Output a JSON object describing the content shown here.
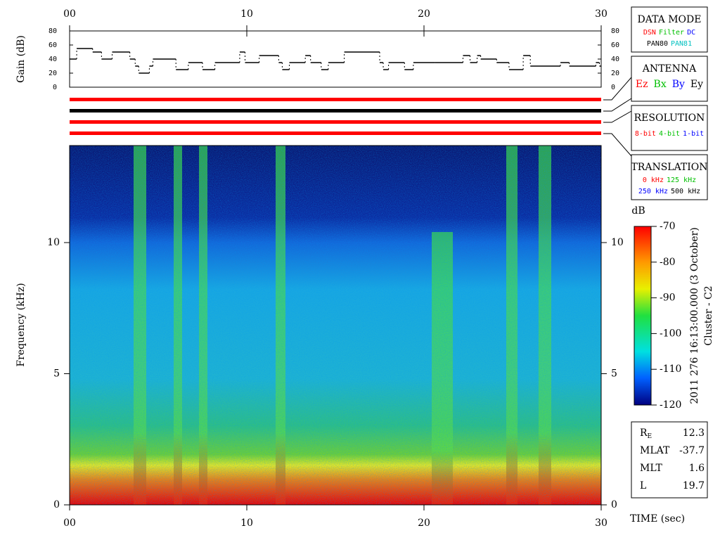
{
  "chart_data": [
    {
      "type": "gain",
      "ylabel": "Gain (dB)",
      "x": [
        0,
        0.4,
        1.3,
        1.8,
        2.4,
        3.4,
        3.7,
        3.9,
        4.5,
        4.7,
        6.0,
        6.7,
        7.5,
        8.2,
        9.6,
        9.9,
        10.7,
        11.8,
        12.0,
        12.4,
        13.3,
        13.6,
        14.2,
        14.6,
        15.5,
        17.5,
        17.7,
        18.0,
        18.9,
        19.4,
        20.6,
        22.2,
        22.6,
        23.0,
        23.2,
        24.1,
        24.8,
        25.6,
        26.0,
        27.7,
        28.2,
        29.7,
        29.9
      ],
      "values": [
        40,
        55,
        50,
        40,
        50,
        40,
        30,
        20,
        30,
        40,
        25,
        35,
        25,
        35,
        50,
        35,
        45,
        35,
        25,
        35,
        45,
        35,
        25,
        35,
        50,
        35,
        25,
        35,
        25,
        35,
        35,
        45,
        35,
        45,
        40,
        35,
        25,
        45,
        30,
        35,
        30,
        35,
        30
      ],
      "color": "#000000",
      "xlim": [
        0,
        30
      ],
      "xticks": [
        {
          "value": 0,
          "label": "00"
        },
        10,
        20,
        30
      ],
      "ylim": [
        0,
        80
      ],
      "yticks": [
        0,
        20,
        40,
        60,
        80
      ]
    },
    {
      "type": "spectrogram",
      "ylabel": "Frequency (kHz)",
      "xlabel": "TIME (sec)",
      "xlim": [
        0,
        30
      ],
      "xticks": [
        {
          "value": 0,
          "label": "00"
        },
        10,
        20,
        30
      ],
      "ylim": [
        0,
        13.7
      ],
      "yticks": [
        0,
        5,
        10
      ],
      "colorbar": {
        "label": "dB",
        "lim": [
          -120,
          -70
        ],
        "ticks": [
          -70,
          -80,
          -90,
          -100,
          -110,
          -120
        ]
      },
      "caption": [
        "2011 276 16:13:00.000 (3 October)",
        "Cluster - C2"
      ]
    }
  ],
  "status_bars": [
    {
      "color": "#ff0000"
    },
    {
      "color": "#000000"
    },
    {
      "color": "#ff0000"
    },
    {
      "color": "#ff0000"
    }
  ],
  "panels": [
    {
      "title": "DATA MODE",
      "rows": [
        [
          {
            "text": "DSN",
            "color": "#ff0000"
          },
          {
            "text": "Filter",
            "color": "#00c000"
          },
          {
            "text": "DC",
            "color": "#0000ff"
          }
        ],
        [
          {
            "text": "PAN80",
            "color": "#000000"
          },
          {
            "text": "PAN81",
            "color": "#00c0c0"
          }
        ]
      ]
    },
    {
      "title": "ANTENNA",
      "rows": [
        [
          {
            "text": "Ez",
            "color": "#ff0000"
          },
          {
            "text": "Bx",
            "color": "#00c000"
          },
          {
            "text": "By",
            "color": "#0000ff"
          },
          {
            "text": "Ey",
            "color": "#000000"
          }
        ]
      ]
    },
    {
      "title": "RESOLUTION",
      "rows": [
        [
          {
            "text": "8-bit",
            "color": "#ff0000"
          },
          {
            "text": "4-bit",
            "color": "#00c000"
          },
          {
            "text": "1-bit",
            "color": "#0000ff"
          }
        ]
      ]
    },
    {
      "title": "TRANSLATION",
      "rows": [
        [
          {
            "text": "0 kHz",
            "color": "#ff0000"
          },
          {
            "text": "125 kHz",
            "color": "#00c000"
          }
        ],
        [
          {
            "text": "250 kHz",
            "color": "#0000ff"
          },
          {
            "text": "500 kHz",
            "color": "#000000"
          }
        ]
      ]
    }
  ],
  "info": [
    {
      "label": "R",
      "sub": "E",
      "value": "12.3"
    },
    {
      "label": "MLAT",
      "value": "-37.7"
    },
    {
      "label": "MLT",
      "value": "1.6"
    },
    {
      "label": "L",
      "value": "19.7"
    }
  ]
}
